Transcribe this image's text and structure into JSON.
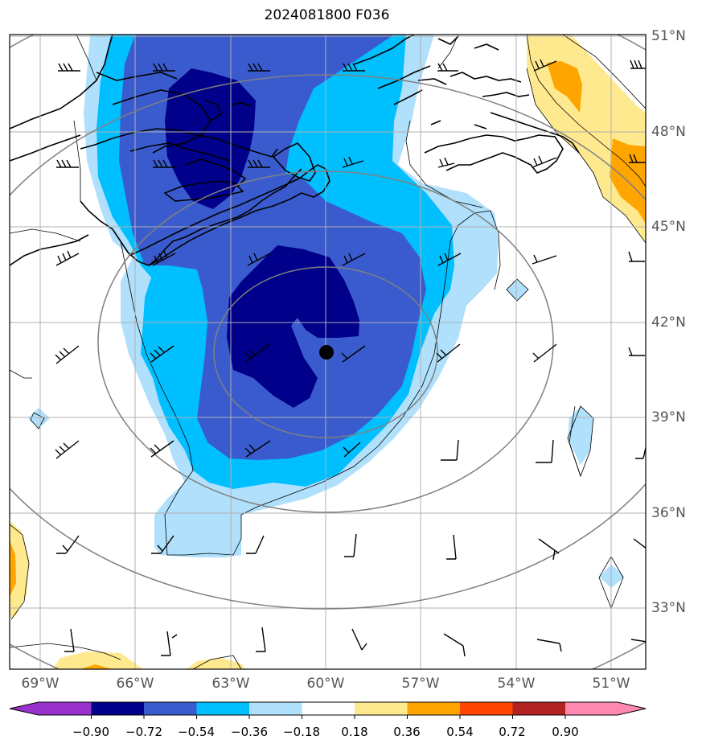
{
  "title": "2024081800 F036",
  "lat_labels": [
    "51°N",
    "48°N",
    "45°N",
    "42°N",
    "39°N",
    "36°N",
    "33°N"
  ],
  "lon_labels": [
    "69°W",
    "66°W",
    "63°W",
    "60°W",
    "57°W",
    "54°W",
    "51°W"
  ],
  "colorbar": {
    "levels": [
      "−0.90",
      "−0.72",
      "−0.54",
      "−0.36",
      "−0.18",
      "0.18",
      "0.36",
      "0.54",
      "0.72",
      "0.90"
    ],
    "colors": [
      "#9932cc",
      "#00008b",
      "#3a5bcd",
      "#00bfff",
      "#b0e0fb",
      "#ffffff",
      "#ffe98f",
      "#ffa500",
      "#ff4500",
      "#b22222",
      "#ff88b0"
    ]
  },
  "center_marker": {
    "lat": 41,
    "lon": -60
  },
  "colors": {
    "coast": "#000000",
    "grid": "#b0b0b0",
    "range_rings": "#808080",
    "wind_barbs": "#000000"
  }
}
